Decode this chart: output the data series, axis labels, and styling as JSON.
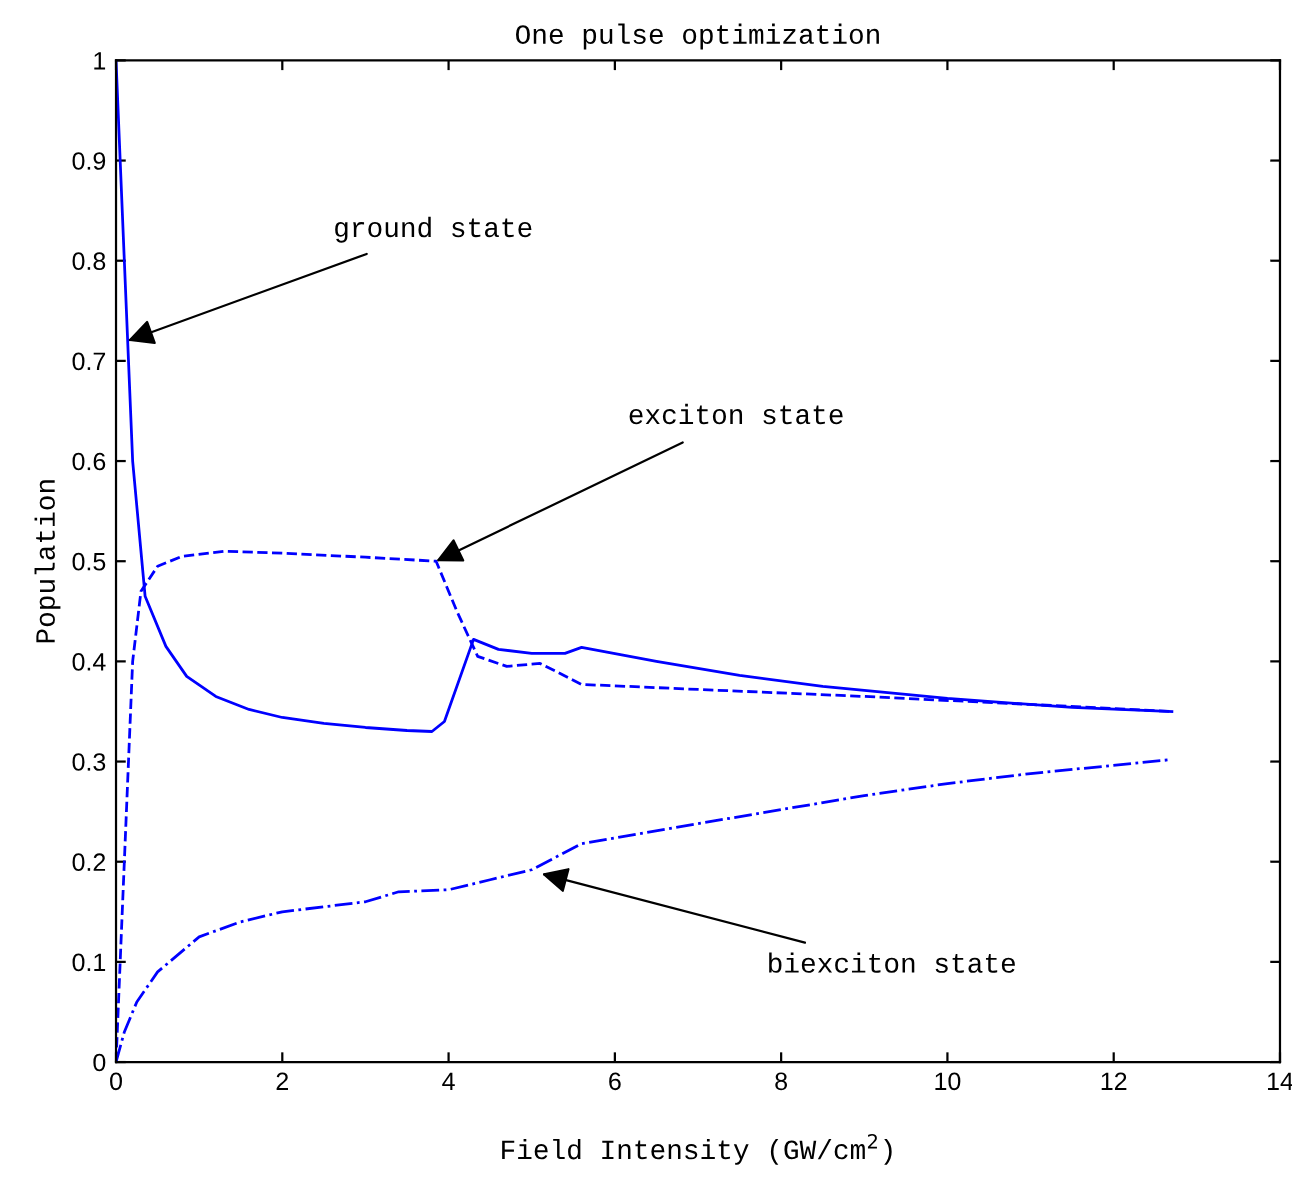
{
  "chart_data": {
    "type": "line",
    "title": "One pulse optimization",
    "xlabel": "Field Intensity (GW/cm$^{2}$)",
    "ylabel": "Population",
    "xlim": [
      0,
      14
    ],
    "xticks": [
      0,
      2,
      4,
      6,
      8,
      10,
      12,
      14
    ],
    "ylim": [
      0,
      1
    ],
    "yticks": [
      0,
      0.1,
      0.2,
      0.3,
      0.4,
      0.5,
      0.6,
      0.7,
      0.8,
      0.9,
      1
    ],
    "grid": false,
    "legend": false,
    "marker": "none",
    "series": [
      {
        "color": "#0000ff",
        "line_style": "solid",
        "x": [
          0,
          0.1,
          0.2,
          0.35,
          0.6,
          0.85,
          1.2,
          1.6,
          2,
          2.5,
          3,
          3.5,
          3.8,
          3.95,
          4.3,
          4.6,
          5,
          5.4,
          5.6,
          6.5,
          7.5,
          8.5,
          10,
          11.5,
          12.7
        ],
        "values": [
          1,
          0.8,
          0.6,
          0.465,
          0.415,
          0.385,
          0.365,
          0.352,
          0.344,
          0.338,
          0.334,
          0.331,
          0.33,
          0.34,
          0.422,
          0.412,
          0.408,
          0.408,
          0.414,
          0.4,
          0.386,
          0.375,
          0.363,
          0.354,
          0.35
        ]
      },
      {
        "color": "#0000ff",
        "line_style": "dashed",
        "x": [
          0,
          0.1,
          0.2,
          0.3,
          0.5,
          0.8,
          1.3,
          2,
          3,
          3.85,
          4.1,
          4.35,
          4.7,
          5.1,
          5.6,
          7,
          9,
          11,
          12.7
        ],
        "values": [
          0,
          0.2,
          0.4,
          0.47,
          0.495,
          0.505,
          0.51,
          0.508,
          0.504,
          0.5,
          0.45,
          0.405,
          0.395,
          0.398,
          0.377,
          0.372,
          0.365,
          0.357,
          0.35
        ]
      },
      {
        "color": "#0000ff",
        "line_style": "dashdot",
        "x": [
          0,
          0.1,
          0.25,
          0.5,
          1,
          1.5,
          2,
          3,
          3.4,
          4,
          4.5,
          5,
          5.6,
          7,
          8,
          9,
          10,
          11,
          12.7
        ],
        "values": [
          0,
          0.03,
          0.06,
          0.09,
          0.125,
          0.14,
          0.15,
          0.16,
          0.17,
          0.172,
          0.182,
          0.192,
          0.218,
          0.238,
          0.252,
          0.266,
          0.278,
          0.288,
          0.302
        ]
      }
    ],
    "annotations": [
      {
        "text": "ground state",
        "x": 0.14,
        "y": 0.72
      },
      {
        "text": "exciton state",
        "x": 3.85,
        "y": 0.5
      },
      {
        "text": "biexciton state",
        "x": 5.12,
        "y": 0.188
      }
    ]
  }
}
